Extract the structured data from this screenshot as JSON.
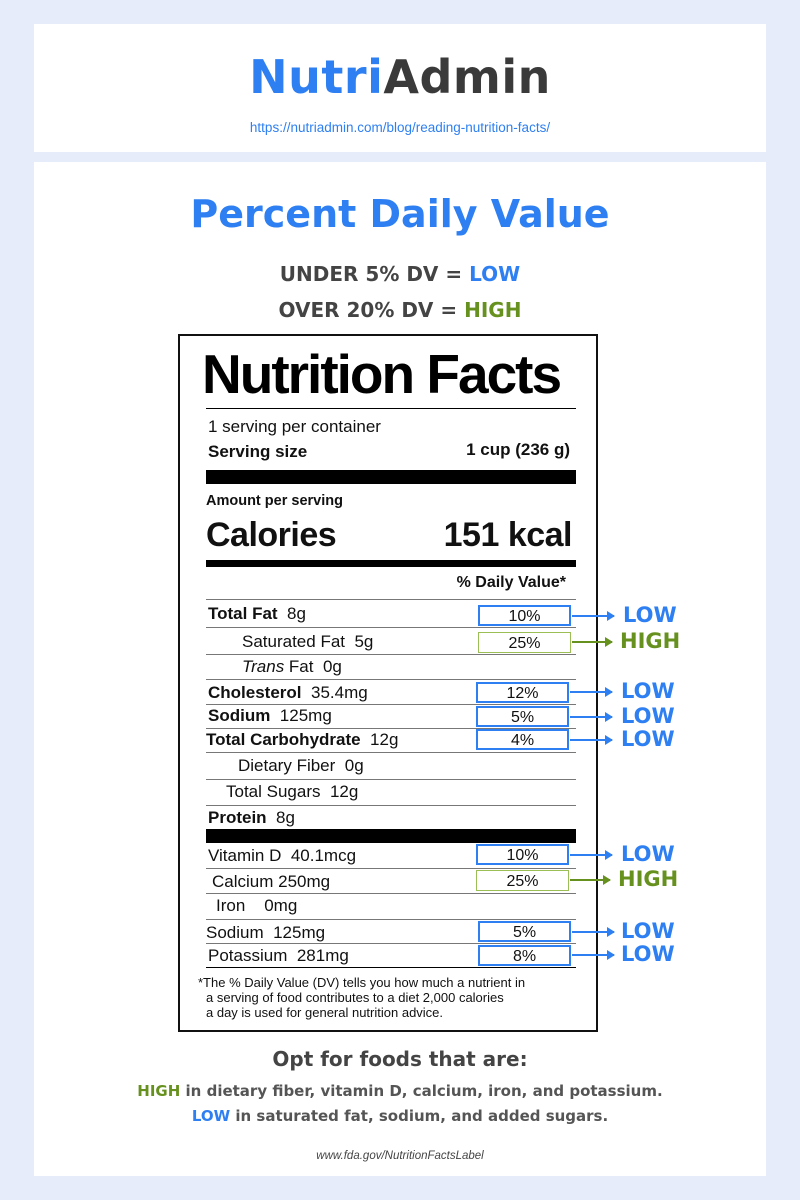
{
  "header": {
    "logo_part1": "Nutri",
    "logo_part2": "Admin",
    "url": "https://nutriadmin.com/blog/reading-nutrition-facts/"
  },
  "main": {
    "headline": "Percent Daily Value",
    "rule_low_prefix": "UNDER 5% DV = ",
    "rule_low_word": "LOW",
    "rule_high_prefix": "OVER 20% DV = ",
    "rule_high_word": "HIGH"
  },
  "label": {
    "title": "Nutrition Facts",
    "servings": "1 serving per container",
    "serving_size_label": "Serving size",
    "serving_size_value": "1 cup (236 g)",
    "amount_per_serving": "Amount per serving",
    "calories_label": "Calories",
    "calories_value": "151 kcal",
    "dv_header": "% Daily Value*",
    "rows": {
      "total_fat": {
        "name": "Total Fat",
        "amount": "8g",
        "dv": "10%",
        "tag": "LOW"
      },
      "saturated_fat": {
        "name": "Saturated Fat",
        "amount": "5g",
        "dv": "25%",
        "tag": "HIGH"
      },
      "trans_fat": {
        "name_italic": "Trans",
        "name_rest": " Fat",
        "amount": "0g"
      },
      "cholesterol": {
        "name": "Cholesterol",
        "amount": "35.4mg",
        "dv": "12%",
        "tag": "LOW"
      },
      "sodium": {
        "name": "Sodium",
        "amount": "125mg",
        "dv": "5%",
        "tag": "LOW"
      },
      "total_carbohydrate": {
        "name": "Total Carbohydrate",
        "amount": "12g",
        "dv": "4%",
        "tag": "LOW"
      },
      "dietary_fiber": {
        "name": "Dietary Fiber",
        "amount": "0g"
      },
      "total_sugars": {
        "name": "Total Sugars",
        "amount": "12g"
      },
      "protein": {
        "name": "Protein",
        "amount": "8g"
      },
      "vitamin_d": {
        "name": "Vitamin D",
        "amount": "40.1mcg",
        "dv": "10%",
        "tag": "LOW"
      },
      "calcium": {
        "name": "Calcium",
        "amount": "250mg",
        "dv": "25%",
        "tag": "HIGH"
      },
      "iron": {
        "name": "Iron",
        "amount": "0mg"
      },
      "sodium_2": {
        "name": "Sodium",
        "amount": "125mg",
        "dv": "5%",
        "tag": "LOW"
      },
      "potassium": {
        "name": "Potassium",
        "amount": "281mg",
        "dv": "8%",
        "tag": "LOW"
      }
    },
    "footnote_1": "*The % Daily Value (DV) tells you how much a nutrient in",
    "footnote_2": "a serving of food contributes to a diet 2,000 calories",
    "footnote_3": "a day is used for general nutrition advice."
  },
  "opt": {
    "title": "Opt for foods that are:",
    "high_word": "HIGH",
    "high_text": " in dietary fiber, vitamin D, calcium, iron, and potassium.",
    "low_word": "LOW",
    "low_text": " in saturated fat, sodium, and added sugars."
  },
  "source": "www.fda.gov/NutritionFactsLabel",
  "colors": {
    "blue": "#2e7ff1",
    "green": "#66911e",
    "background": "#e7ecfa"
  }
}
